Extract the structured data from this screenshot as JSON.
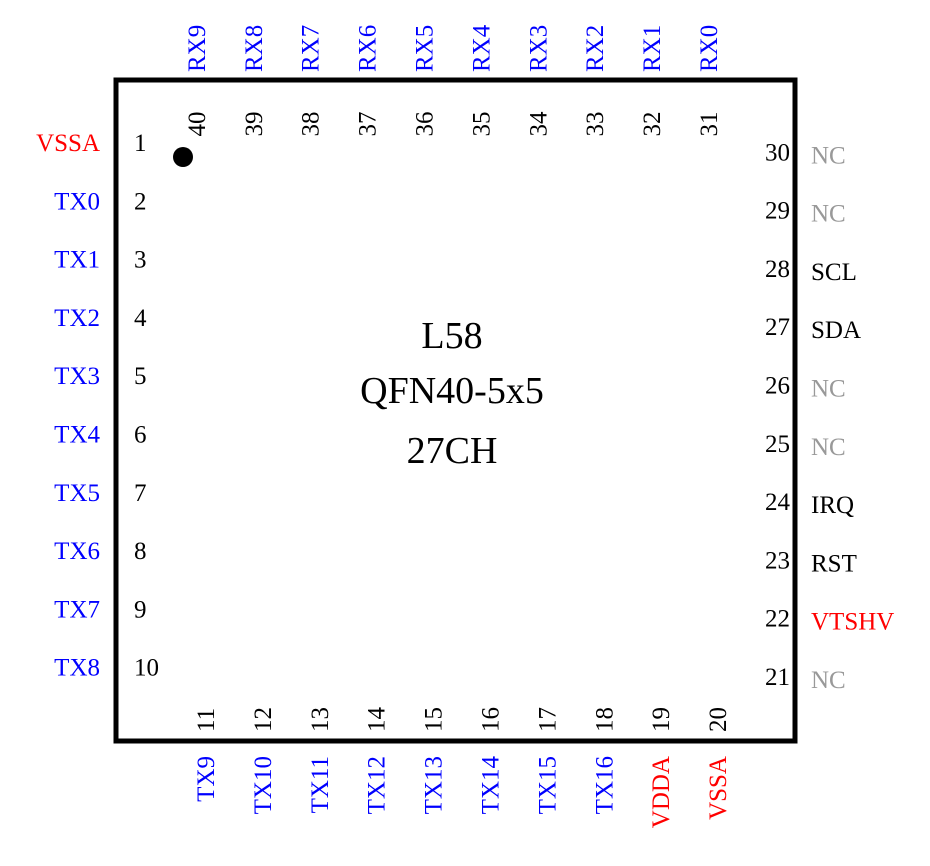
{
  "chip": {
    "lines": [
      "L58",
      "QFN40-5x5",
      "27CH"
    ]
  },
  "colors": {
    "power": "#ff0000",
    "channel": "#0000ff",
    "nc": "#999999",
    "control": "#000000"
  },
  "pins": {
    "left": [
      {
        "num": "1",
        "name": "VSSA",
        "kind": "power"
      },
      {
        "num": "2",
        "name": "TX0",
        "kind": "channel"
      },
      {
        "num": "3",
        "name": "TX1",
        "kind": "channel"
      },
      {
        "num": "4",
        "name": "TX2",
        "kind": "channel"
      },
      {
        "num": "5",
        "name": "TX3",
        "kind": "channel"
      },
      {
        "num": "6",
        "name": "TX4",
        "kind": "channel"
      },
      {
        "num": "7",
        "name": "TX5",
        "kind": "channel"
      },
      {
        "num": "8",
        "name": "TX6",
        "kind": "channel"
      },
      {
        "num": "9",
        "name": "TX7",
        "kind": "channel"
      },
      {
        "num": "10",
        "name": "TX8",
        "kind": "channel"
      }
    ],
    "bottom": [
      {
        "num": "11",
        "name": "TX9",
        "kind": "channel"
      },
      {
        "num": "12",
        "name": "TX10",
        "kind": "channel"
      },
      {
        "num": "13",
        "name": "TX11",
        "kind": "channel"
      },
      {
        "num": "14",
        "name": "TX12",
        "kind": "channel"
      },
      {
        "num": "15",
        "name": "TX13",
        "kind": "channel"
      },
      {
        "num": "16",
        "name": "TX14",
        "kind": "channel"
      },
      {
        "num": "17",
        "name": "TX15",
        "kind": "channel"
      },
      {
        "num": "18",
        "name": "TX16",
        "kind": "channel"
      },
      {
        "num": "19",
        "name": "VDDA",
        "kind": "power"
      },
      {
        "num": "20",
        "name": "VSSA",
        "kind": "power"
      }
    ],
    "right": [
      {
        "num": "21",
        "name": "NC",
        "kind": "nc"
      },
      {
        "num": "22",
        "name": "VTSHV",
        "kind": "power"
      },
      {
        "num": "23",
        "name": "RST",
        "kind": "control"
      },
      {
        "num": "24",
        "name": "IRQ",
        "kind": "control"
      },
      {
        "num": "25",
        "name": "NC",
        "kind": "nc"
      },
      {
        "num": "26",
        "name": "NC",
        "kind": "nc"
      },
      {
        "num": "27",
        "name": "SDA",
        "kind": "control"
      },
      {
        "num": "28",
        "name": "SCL",
        "kind": "control"
      },
      {
        "num": "29",
        "name": "NC",
        "kind": "nc"
      },
      {
        "num": "30",
        "name": "NC",
        "kind": "nc"
      }
    ],
    "top": [
      {
        "num": "31",
        "name": "RX0",
        "kind": "channel"
      },
      {
        "num": "32",
        "name": "RX1",
        "kind": "channel"
      },
      {
        "num": "33",
        "name": "RX2",
        "kind": "channel"
      },
      {
        "num": "34",
        "name": "RX3",
        "kind": "channel"
      },
      {
        "num": "35",
        "name": "RX4",
        "kind": "channel"
      },
      {
        "num": "36",
        "name": "RX5",
        "kind": "channel"
      },
      {
        "num": "37",
        "name": "RX6",
        "kind": "channel"
      },
      {
        "num": "38",
        "name": "RX7",
        "kind": "channel"
      },
      {
        "num": "39",
        "name": "RX8",
        "kind": "channel"
      },
      {
        "num": "40",
        "name": "RX9",
        "kind": "channel"
      }
    ]
  }
}
